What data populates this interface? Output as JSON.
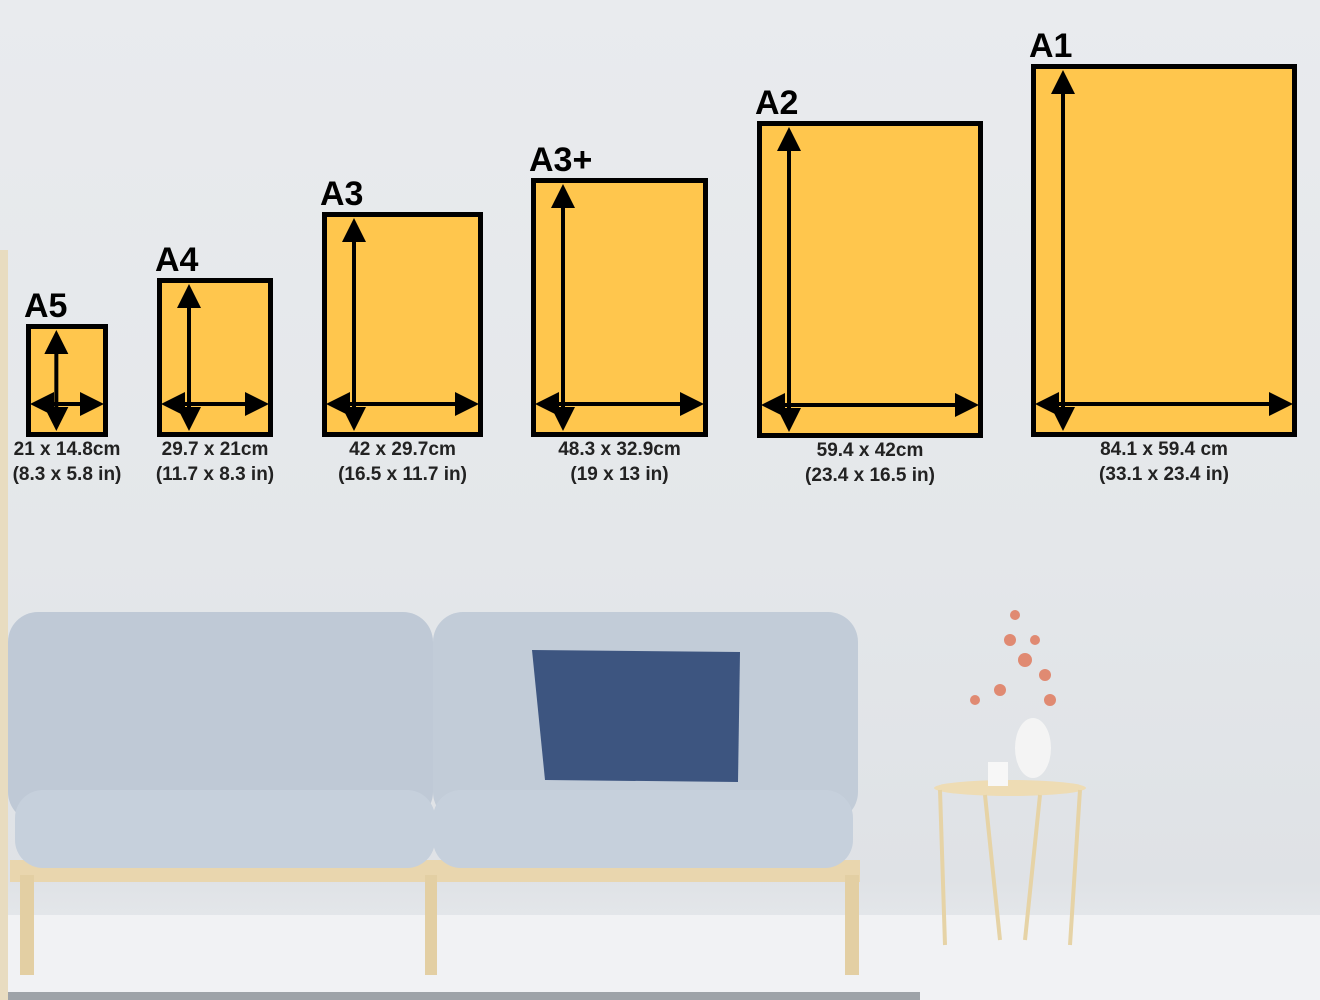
{
  "paper_fill": "#FFC64D",
  "frame_color": "#000000",
  "sizes": [
    {
      "name": "A5",
      "cm": "21 x 14.8cm",
      "in": "(8.3 x 5.8 in)"
    },
    {
      "name": "A4",
      "cm": "29.7 x 21cm",
      "in": "(11.7 x 8.3 in)"
    },
    {
      "name": "A3",
      "cm": "42 x 29.7cm",
      "in": "(16.5 x 11.7 in)"
    },
    {
      "name": "A3+",
      "cm": "48.3 x 32.9cm",
      "in": "(19 x 13 in)"
    },
    {
      "name": "A2",
      "cm": "59.4 x 42cm",
      "in": "(23.4 x 16.5 in)"
    },
    {
      "name": "A1",
      "cm": "84.1 x 59.4 cm",
      "in": "(33.1 x 23.4 in)"
    }
  ]
}
